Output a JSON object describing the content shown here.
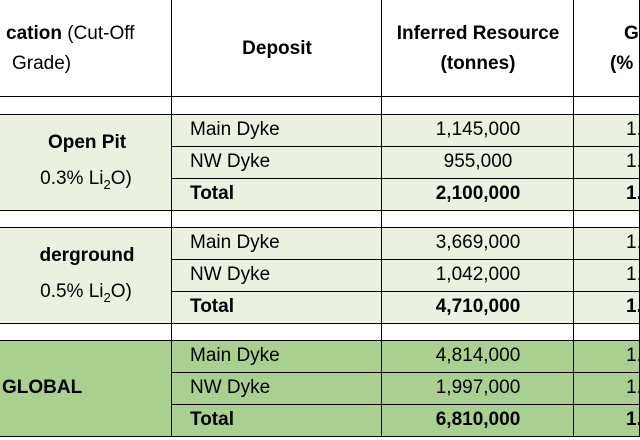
{
  "header": {
    "location_bold": "cation",
    "location_light": " (Cut-Off",
    "location_line2": "Grade)",
    "deposit": "Deposit",
    "inferred_line1": "Inferred Resource",
    "inferred_line2": "(tonnes)",
    "grade_line1": "G",
    "grade_line2": "(%"
  },
  "groups": [
    {
      "name": "Open Pit",
      "cutoff_prefix": "0.3% Li",
      "cutoff_sub": "2",
      "cutoff_suffix": "O)",
      "rows": [
        {
          "deposit": "Main Dyke",
          "tonnes": "1,145,000",
          "grade": "1."
        },
        {
          "deposit": "NW Dyke",
          "tonnes": "955,000",
          "grade": "1."
        },
        {
          "deposit": "Total",
          "tonnes": "2,100,000",
          "grade": "1."
        }
      ]
    },
    {
      "name": "derground",
      "cutoff_prefix": "0.5% Li",
      "cutoff_sub": "2",
      "cutoff_suffix": "O)",
      "rows": [
        {
          "deposit": "Main Dyke",
          "tonnes": "3,669,000",
          "grade": "1."
        },
        {
          "deposit": "NW Dyke",
          "tonnes": "1,042,000",
          "grade": "1."
        },
        {
          "deposit": "Total",
          "tonnes": "4,710,000",
          "grade": "1."
        }
      ]
    },
    {
      "name": "GLOBAL",
      "rows": [
        {
          "deposit": "Main Dyke",
          "tonnes": "4,814,000",
          "grade": "1."
        },
        {
          "deposit": "NW Dyke",
          "tonnes": "1,997,000",
          "grade": "1."
        },
        {
          "deposit": "Total",
          "tonnes": "6,810,000",
          "grade": "1."
        }
      ]
    }
  ]
}
